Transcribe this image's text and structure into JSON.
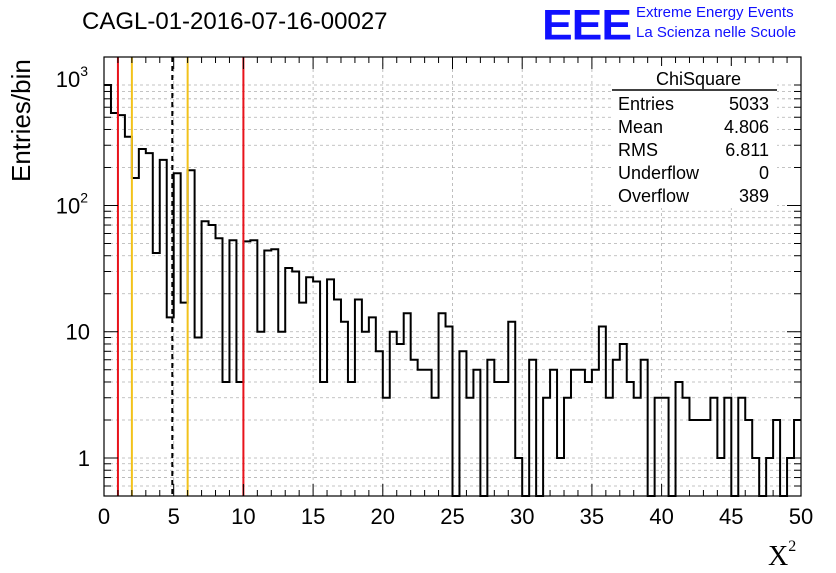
{
  "title": "CAGL-01-2016-07-16-00027",
  "logo": {
    "mark": "EEE",
    "line1": "Extreme Energy Events",
    "line2": "La Scienza nelle Scuole",
    "color": "#1010ff"
  },
  "stats": {
    "title": "ChiSquare",
    "rows": [
      {
        "label": "Entries",
        "value": "5033"
      },
      {
        "label": "Mean",
        "value": "4.806"
      },
      {
        "label": "RMS",
        "value": "6.811"
      },
      {
        "label": "Underflow",
        "value": "0"
      },
      {
        "label": "Overflow",
        "value": "389"
      }
    ]
  },
  "chart_data": {
    "type": "histogram",
    "xlabel": "X",
    "xlabel_superscript": "2",
    "ylabel": "Entries/bin",
    "xlim": [
      0,
      50
    ],
    "ylim": [
      0.5,
      1500
    ],
    "yscale": "log",
    "grid": true,
    "bin_width": 0.5,
    "x_ticks": [
      "0",
      "5",
      "10",
      "15",
      "20",
      "25",
      "30",
      "35",
      "40",
      "45",
      "50"
    ],
    "y_ticks": [
      {
        "value": 1,
        "label": "1"
      },
      {
        "value": 10,
        "label": "10"
      },
      {
        "value": 100,
        "label": "10",
        "exp": "2"
      },
      {
        "value": 1000,
        "label": "10",
        "exp": "3"
      }
    ],
    "values": [
      900,
      540,
      520,
      350,
      165,
      280,
      260,
      42,
      230,
      13,
      180,
      17,
      190,
      9,
      75,
      70,
      55,
      4,
      53,
      4,
      52,
      53,
      10,
      44,
      45,
      10,
      32,
      30,
      17,
      27,
      25,
      4,
      26,
      18,
      12,
      4,
      18,
      10,
      13,
      7,
      3,
      10,
      8,
      14,
      6,
      5,
      5,
      3,
      14,
      11,
      0.5,
      7,
      3,
      5,
      0,
      6,
      4,
      4,
      12,
      1,
      0,
      6,
      0,
      3,
      5,
      1,
      3,
      5,
      5,
      4,
      5,
      11,
      3,
      6,
      8,
      4,
      3,
      6,
      0,
      3,
      3,
      0,
      4,
      3,
      2,
      2,
      2,
      3,
      1,
      3,
      0,
      3,
      2,
      1,
      0,
      1,
      2,
      0,
      1,
      2
    ],
    "vlines": [
      {
        "x": 1,
        "color": "#e8131b",
        "style": "solid"
      },
      {
        "x": 2,
        "color": "#f2c21b",
        "style": "solid"
      },
      {
        "x": 4.9,
        "color": "#000000",
        "style": "dashed"
      },
      {
        "x": 6,
        "color": "#f2c21b",
        "style": "solid"
      },
      {
        "x": 10,
        "color": "#e8131b",
        "style": "solid"
      }
    ]
  }
}
